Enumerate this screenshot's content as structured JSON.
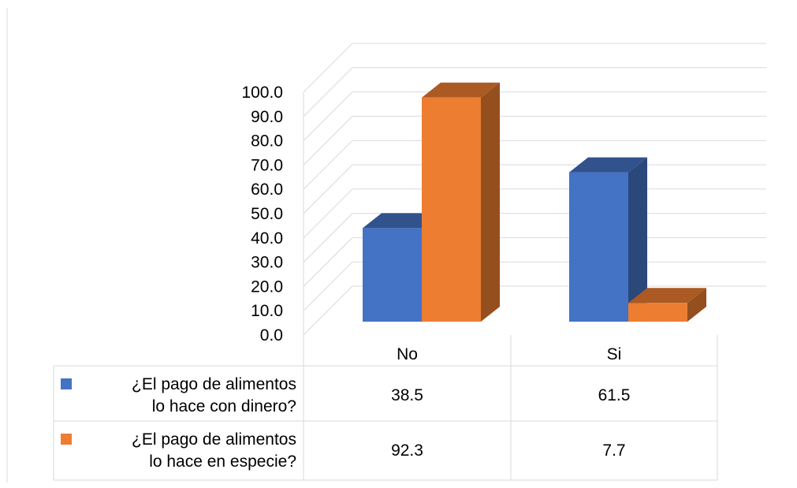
{
  "chart_data": {
    "type": "bar",
    "categories": [
      "No",
      "Si"
    ],
    "series": [
      {
        "name": "¿El pago de alimentos lo hace con dinero?",
        "name_lines": [
          "¿El pago de alimentos",
          "lo hace con dinero?"
        ],
        "values": [
          38.5,
          61.5
        ],
        "table_values": [
          "38.5",
          "61.5"
        ],
        "color": "#4472C4"
      },
      {
        "name": "¿El pago de alimentos lo hace en especie?",
        "name_lines": [
          "¿El pago de alimentos",
          "lo hace en especie?"
        ],
        "values": [
          92.3,
          7.7
        ],
        "table_values": [
          "92.3",
          "7.7"
        ],
        "color": "#ED7D31"
      }
    ],
    "y_ticks": [
      "0.0",
      "10.0",
      "20.0",
      "30.0",
      "40.0",
      "50.0",
      "60.0",
      "70.0",
      "80.0",
      "90.0",
      "100.0"
    ],
    "ylim": [
      0,
      100
    ],
    "title": "",
    "xlabel": "",
    "ylabel": "",
    "grid": true,
    "legend": "data-table",
    "view": "3d-clustered-column"
  }
}
